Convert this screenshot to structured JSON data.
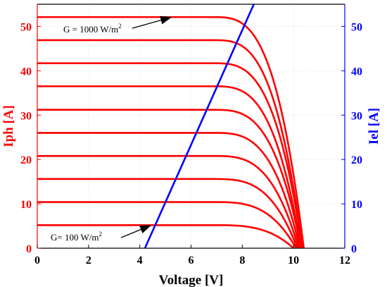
{
  "chart_data": {
    "type": "line",
    "title": "",
    "xlabel": "Voltage [V]",
    "ylabel_left": "Iph [A]",
    "ylabel_right": "Iel [A]",
    "xlim": [
      0,
      12
    ],
    "ylim_left": [
      0,
      55
    ],
    "ylim_right": [
      0,
      55
    ],
    "x_ticks": [
      "0",
      "2",
      "4",
      "6",
      "8",
      "10",
      "12"
    ],
    "y_ticks_left": [
      "0",
      "10",
      "20",
      "30",
      "40",
      "50"
    ],
    "y_ticks_right": [
      "0",
      "10",
      "20",
      "30",
      "40",
      "50"
    ],
    "grid": true,
    "colors": {
      "pv": "#ff0000",
      "electrolyser": "#0000ff",
      "axis_left": "#ff0000",
      "axis_right": "#0000ff",
      "annotation": "#000000"
    },
    "pv_curves": {
      "axis": "left",
      "knee_voltage": 9.5,
      "curves": [
        {
          "isc": 5.2,
          "voc": 10.0
        },
        {
          "isc": 10.4,
          "voc": 10.1
        },
        {
          "isc": 15.6,
          "voc": 10.15
        },
        {
          "isc": 20.8,
          "voc": 10.2
        },
        {
          "isc": 26.0,
          "voc": 10.25
        },
        {
          "isc": 31.2,
          "voc": 10.3
        },
        {
          "isc": 36.5,
          "voc": 10.3
        },
        {
          "isc": 41.7,
          "voc": 10.35
        },
        {
          "isc": 46.9,
          "voc": 10.35
        },
        {
          "isc": 52.1,
          "voc": 10.4
        }
      ]
    },
    "electrolyser_line": {
      "axis": "right",
      "points": [
        {
          "x": 4.2,
          "y": 0
        },
        {
          "x": 8.45,
          "y": 55
        }
      ]
    },
    "annotations": [
      {
        "text": "G = 1000 W/m",
        "sup": "2",
        "arrow_to": {
          "x": 5.25,
          "y": 52.1
        }
      },
      {
        "text": "G= 100 W/m",
        "sup": "2",
        "arrow_to": {
          "x": 4.45,
          "y": 5.2
        }
      }
    ]
  }
}
